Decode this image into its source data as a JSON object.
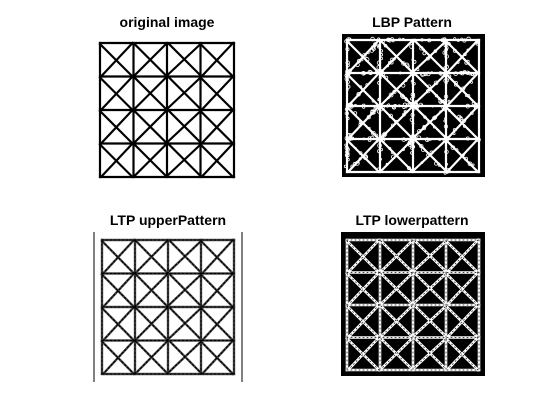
{
  "figure": {
    "panels": [
      {
        "title": "original image",
        "icon": "grid-cross-pattern-image"
      },
      {
        "title": "LBP Pattern",
        "icon": "lbp-pattern-image"
      },
      {
        "title": "LTP upperPattern",
        "icon": "ltp-upper-pattern-image"
      },
      {
        "title": "LTP lowerpattern",
        "icon": "ltp-lower-pattern-image"
      }
    ],
    "grid": {
      "rows": 4,
      "cols": 4
    },
    "colors": {
      "background": "#ffffff",
      "foreground": "#000000",
      "pattern_line": "#ffffff"
    }
  }
}
